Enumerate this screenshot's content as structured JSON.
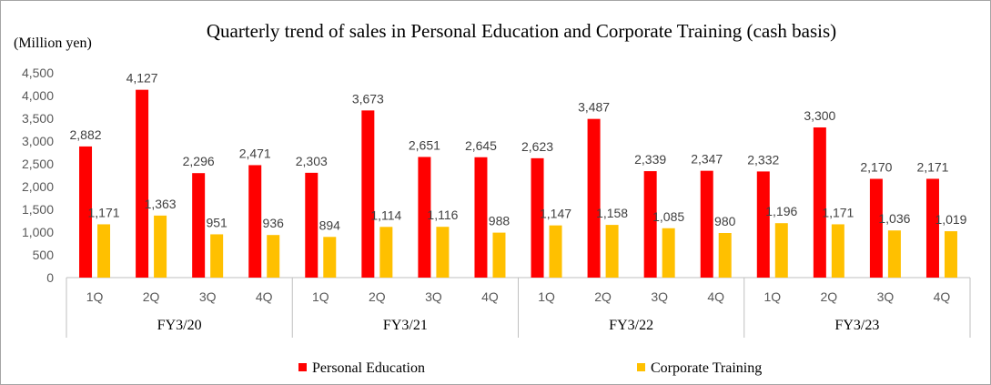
{
  "chart_data": {
    "type": "bar",
    "title": "Quarterly trend of sales in Personal Education and Corporate Training (cash basis)",
    "ylabel": "(Million yen)",
    "xlabel": "",
    "ylim": [
      0,
      4500
    ],
    "yticks": [
      "0",
      "500",
      "1,000",
      "1,500",
      "2,000",
      "2,500",
      "3,000",
      "3,500",
      "4,000",
      "4,500"
    ],
    "ytick_values": [
      0,
      500,
      1000,
      1500,
      2000,
      2500,
      3000,
      3500,
      4000,
      4500
    ],
    "grid": false,
    "legend_position": "bottom",
    "groups": [
      {
        "label": "FY3/20",
        "quarters": [
          "1Q",
          "2Q",
          "3Q",
          "4Q"
        ]
      },
      {
        "label": "FY3/21",
        "quarters": [
          "1Q",
          "2Q",
          "3Q",
          "4Q"
        ]
      },
      {
        "label": "FY3/22",
        "quarters": [
          "1Q",
          "2Q",
          "3Q",
          "4Q"
        ]
      },
      {
        "label": "FY3/23",
        "quarters": [
          "1Q",
          "2Q",
          "3Q",
          "4Q"
        ]
      }
    ],
    "series": [
      {
        "name": "Personal Education",
        "color": "#ff0000",
        "values": [
          2882,
          4127,
          2296,
          2471,
          2303,
          3673,
          2651,
          2645,
          2623,
          3487,
          2339,
          2347,
          2332,
          3300,
          2170,
          2171
        ],
        "labels": [
          "2,882",
          "4,127",
          "2,296",
          "2,471",
          "2,303",
          "3,673",
          "2,651",
          "2,645",
          "2,623",
          "3,487",
          "2,339",
          "2,347",
          "2,332",
          "3,300",
          "2,170",
          "2,171"
        ]
      },
      {
        "name": "Corporate Training",
        "color": "#ffc000",
        "values": [
          1171,
          1363,
          951,
          936,
          894,
          1114,
          1116,
          988,
          1147,
          1158,
          1085,
          980,
          1196,
          1171,
          1036,
          1019
        ],
        "labels": [
          "1,171",
          "1,363",
          "951",
          "936",
          "894",
          "1,114",
          "1,116",
          "988",
          "1,147",
          "1,158",
          "1,085",
          "980",
          "1,196",
          "1,171",
          "1,036",
          "1,019"
        ]
      }
    ]
  }
}
